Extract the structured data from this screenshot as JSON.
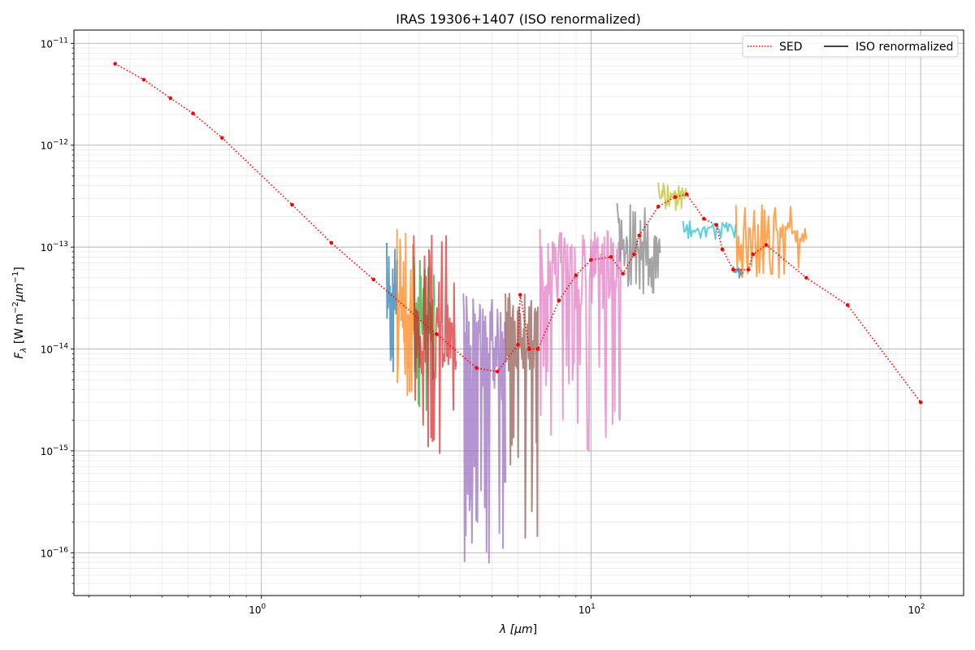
{
  "chart_data": {
    "type": "line",
    "title": "IRAS 19306+1407 (ISO renormalized)",
    "xlabel_main": "λ [",
    "xlabel_unit": "μm",
    "xlabel_close": "]",
    "ylabel_main": "F",
    "ylabel_sub": "λ",
    "ylabel_rest": " [W m",
    "ylabel_exp": "−2",
    "ylabel_unit": "μm",
    "ylabel_exp2": "−1",
    "ylabel_close": "]",
    "xscale": "log",
    "yscale": "log",
    "xlim": [
      0.27,
      135
    ],
    "ylim": [
      3.8e-17,
      1.35e-11
    ],
    "grid": true,
    "legend_placement": "top-right",
    "legend": [
      {
        "label": "SED",
        "style": "dotted",
        "color": "#ff0000"
      },
      {
        "label": "ISO renormalized",
        "style": "solid",
        "color": "#000000"
      }
    ],
    "x_ticks": [
      {
        "value": 1,
        "base": "10",
        "exp": "0"
      },
      {
        "value": 10,
        "base": "10",
        "exp": "1"
      },
      {
        "value": 100,
        "base": "10",
        "exp": "2"
      }
    ],
    "y_ticks": [
      {
        "value": 1e-16,
        "base": "10",
        "exp": "−16"
      },
      {
        "value": 1e-15,
        "base": "10",
        "exp": "−15"
      },
      {
        "value": 1e-14,
        "base": "10",
        "exp": "−14"
      },
      {
        "value": 1e-13,
        "base": "10",
        "exp": "−13"
      },
      {
        "value": 1e-12,
        "base": "10",
        "exp": "−12"
      },
      {
        "value": 1e-11,
        "base": "10",
        "exp": "−11"
      }
    ],
    "sed": {
      "name": "SED",
      "color": "#ff0000",
      "points": [
        [
          0.36,
          6.3e-12
        ],
        [
          0.44,
          4.4e-12
        ],
        [
          0.53,
          2.9e-12
        ],
        [
          0.62,
          2.05e-12
        ],
        [
          0.76,
          1.18e-12
        ],
        [
          1.24,
          2.6e-13
        ],
        [
          1.63,
          1.1e-13
        ],
        [
          2.19,
          4.8e-14
        ],
        [
          3.4,
          1.4e-14
        ],
        [
          4.5,
          6.5e-15
        ],
        [
          5.2,
          6e-15
        ],
        [
          6.0,
          1.1e-14
        ],
        [
          6.1,
          3.4e-14
        ],
        [
          6.5,
          1e-14
        ],
        [
          6.9,
          1e-14
        ],
        [
          8.0,
          3e-14
        ],
        [
          9.0,
          5.3e-14
        ],
        [
          10.0,
          7.5e-14
        ],
        [
          11.5,
          8e-14
        ],
        [
          12.5,
          5.5e-14
        ],
        [
          13.5,
          8.5e-14
        ],
        [
          14.0,
          1.3e-13
        ],
        [
          16.0,
          2.5e-13
        ],
        [
          18.0,
          3.1e-13
        ],
        [
          19.5,
          3.3e-13
        ],
        [
          22.0,
          1.9e-13
        ],
        [
          24.0,
          1.65e-13
        ],
        [
          25.0,
          9.5e-14
        ],
        [
          27.0,
          6e-14
        ],
        [
          30.0,
          6e-14
        ],
        [
          31.0,
          8.5e-14
        ],
        [
          34.0,
          1.05e-13
        ],
        [
          45.0,
          5e-14
        ],
        [
          60.0,
          2.7e-14
        ],
        [
          100.0,
          3e-15
        ]
      ]
    },
    "spectra": [
      {
        "color": "#1f77b4",
        "xmin": 2.4,
        "xmax": 2.58,
        "lo": 6e-15,
        "hi": 1.1e-13,
        "base": 3e-14,
        "n": 30,
        "seed": 11
      },
      {
        "color": "#ff7f0e",
        "xmin": 2.58,
        "xmax": 2.9,
        "lo": 3.5e-15,
        "hi": 1.5e-13,
        "base": 2.2e-14,
        "n": 40,
        "seed": 12
      },
      {
        "color": "#2ca02c",
        "xmin": 2.9,
        "xmax": 3.35,
        "lo": 2.5e-15,
        "hi": 8e-14,
        "base": 1.8e-14,
        "n": 45,
        "seed": 13
      },
      {
        "color": "#d62728",
        "xmin": 2.9,
        "xmax": 3.9,
        "lo": 9.5e-16,
        "hi": 1.3e-13,
        "base": 1.2e-14,
        "n": 60,
        "seed": 14
      },
      {
        "color": "#9467bd",
        "xmin": 4.1,
        "xmax": 5.5,
        "lo": 8e-17,
        "hi": 3.5e-14,
        "base": 8e-15,
        "n": 70,
        "seed": 15
      },
      {
        "color": "#8c564b",
        "xmin": 5.5,
        "xmax": 6.9,
        "lo": 1.4e-16,
        "hi": 3.5e-14,
        "base": 1.4e-14,
        "n": 60,
        "seed": 16
      },
      {
        "color": "#e377c2",
        "xmin": 7.0,
        "xmax": 12.3,
        "lo": 1e-15,
        "hi": 1.5e-13,
        "base": 6e-14,
        "n": 110,
        "seed": 17
      },
      {
        "color": "#7f7f7f",
        "xmin": 12.0,
        "xmax": 16.2,
        "lo": 3.5e-14,
        "hi": 2.7e-13,
        "base": 9e-14,
        "n": 60,
        "seed": 18
      },
      {
        "color": "#bcbd22",
        "xmin": 16.0,
        "xmax": 19.5,
        "lo": 2.3e-13,
        "hi": 4.3e-13,
        "base": 3.2e-13,
        "n": 40,
        "seed": 19
      },
      {
        "color": "#17becf",
        "xmin": 19.0,
        "xmax": 27.5,
        "lo": 1.2e-13,
        "hi": 1.8e-13,
        "base": 1.5e-13,
        "n": 40,
        "seed": 20
      },
      {
        "color": "#1f77b4",
        "xmin": 27.0,
        "xmax": 29.0,
        "lo": 5e-14,
        "hi": 6.5e-14,
        "base": 5.8e-14,
        "n": 16,
        "seed": 21
      },
      {
        "color": "#ff7f0e",
        "xmin": 27.5,
        "xmax": 45.0,
        "lo": 5e-14,
        "hi": 2.6e-13,
        "base": 1.3e-13,
        "n": 55,
        "seed": 22
      }
    ]
  }
}
